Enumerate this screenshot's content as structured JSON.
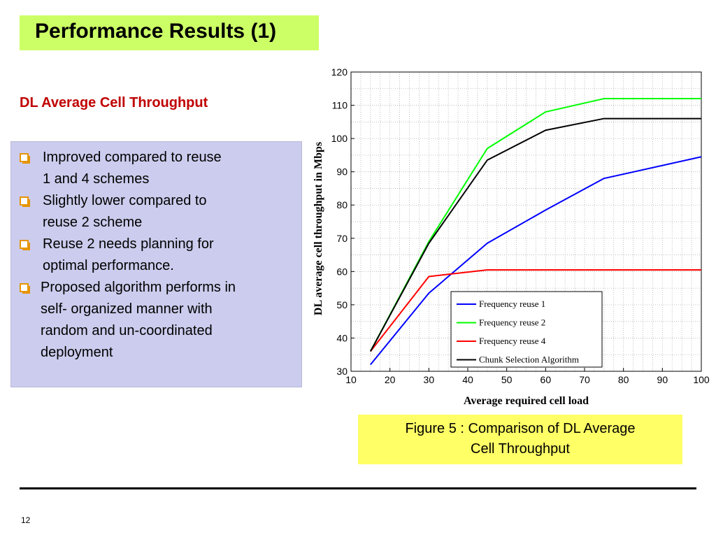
{
  "slide": {
    "title": "Performance Results (1)",
    "subtitle": "DL Average Cell Throughput",
    "bullets": [
      {
        "lines": [
          "Improved compared to reuse",
          "1 and 4 schemes"
        ]
      },
      {
        "lines": [
          "Slightly lower compared to",
          "reuse 2 scheme"
        ]
      },
      {
        "lines": [
          "Reuse 2 needs planning for",
          "optimal performance."
        ]
      },
      {
        "lines": [
          "Proposed algorithm performs in",
          "self- organized manner with",
          "random and un-coordinated",
          "deployment"
        ]
      }
    ],
    "caption_lines": [
      "Figure 5  : Comparison of DL Average",
      "Cell Throughput"
    ],
    "page_number": "12"
  },
  "colors": {
    "title_bg": "#ccff66",
    "subtitle": "#c00000",
    "bullet_box_bg": "#ccccee",
    "bullet_marker": "#e69500",
    "caption_bg": "#ffff66"
  },
  "chart_data": {
    "type": "line",
    "title": "",
    "xlabel": "Average required cell load",
    "ylabel": "DL average cell throughput in Mbps",
    "xlim": [
      10,
      100
    ],
    "ylim": [
      30,
      120
    ],
    "xticks": [
      10,
      20,
      30,
      40,
      50,
      60,
      70,
      80,
      90,
      100
    ],
    "yticks": [
      30,
      40,
      50,
      60,
      70,
      80,
      90,
      100,
      110,
      120
    ],
    "grid": true,
    "legend_position": "bottom-right",
    "series": [
      {
        "name": "Frequency reuse 1",
        "color": "#0000ff",
        "x": [
          15,
          30,
          45,
          60,
          75,
          100
        ],
        "y": [
          32,
          53.5,
          68.5,
          78.5,
          88,
          94.5
        ]
      },
      {
        "name": "Frequency reuse 2",
        "color": "#00ff00",
        "x": [
          15,
          30,
          45,
          60,
          75,
          100
        ],
        "y": [
          36,
          69,
          97,
          108,
          112,
          112
        ]
      },
      {
        "name": "Frequency reuse 4",
        "color": "#ff0000",
        "x": [
          15,
          30,
          45,
          60,
          75,
          100
        ],
        "y": [
          36,
          58.5,
          60.5,
          60.5,
          60.5,
          60.5
        ]
      },
      {
        "name": "Chunk Selection Algorithm",
        "color": "#000000",
        "x": [
          15,
          30,
          45,
          60,
          75,
          100
        ],
        "y": [
          36,
          68.5,
          93.5,
          102.5,
          106,
          106
        ]
      }
    ]
  }
}
